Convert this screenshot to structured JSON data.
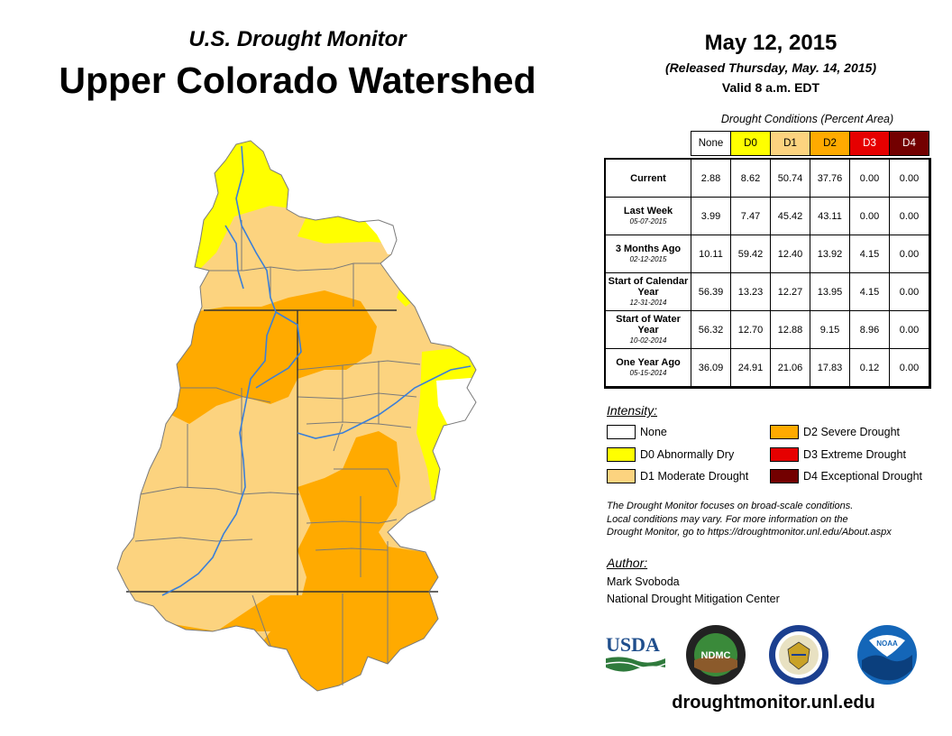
{
  "header": {
    "subtitle": "U.S. Drought Monitor",
    "title": "Upper Colorado Watershed"
  },
  "date_block": {
    "date": "May 12, 2015",
    "released": "(Released Thursday, May. 14, 2015)",
    "valid": "Valid 8 a.m. EDT"
  },
  "conditions": {
    "caption": "Drought Conditions (Percent Area)",
    "columns": [
      {
        "label": "None",
        "color": "#ffffff",
        "text_color": "#000000"
      },
      {
        "label": "D0",
        "color": "#ffff00",
        "text_color": "#000000"
      },
      {
        "label": "D1",
        "color": "#fcd37f",
        "text_color": "#000000"
      },
      {
        "label": "D2",
        "color": "#ffaa00",
        "text_color": "#000000"
      },
      {
        "label": "D3",
        "color": "#e60000",
        "text_color": "#ffffff"
      },
      {
        "label": "D4",
        "color": "#730000",
        "text_color": "#ffffff"
      }
    ],
    "rows": [
      {
        "label": "Current",
        "sub": "",
        "values": [
          "2.88",
          "8.62",
          "50.74",
          "37.76",
          "0.00",
          "0.00"
        ]
      },
      {
        "label": "Last Week",
        "sub": "05-07-2015",
        "values": [
          "3.99",
          "7.47",
          "45.42",
          "43.11",
          "0.00",
          "0.00"
        ]
      },
      {
        "label": "3 Months Ago",
        "sub": "02-12-2015",
        "values": [
          "10.11",
          "59.42",
          "12.40",
          "13.92",
          "4.15",
          "0.00"
        ]
      },
      {
        "label": "Start of Calendar Year",
        "sub": "12-31-2014",
        "values": [
          "56.39",
          "13.23",
          "12.27",
          "13.95",
          "4.15",
          "0.00"
        ]
      },
      {
        "label": "Start of Water Year",
        "sub": "10-02-2014",
        "values": [
          "56.32",
          "12.70",
          "12.88",
          "9.15",
          "8.96",
          "0.00"
        ]
      },
      {
        "label": "One Year Ago",
        "sub": "05-15-2014",
        "values": [
          "36.09",
          "24.91",
          "21.06",
          "17.83",
          "0.12",
          "0.00"
        ]
      }
    ]
  },
  "legend": {
    "title": "Intensity:",
    "items": [
      {
        "label": "None",
        "color": "#ffffff"
      },
      {
        "label": "D0 Abnormally Dry",
        "color": "#ffff00"
      },
      {
        "label": "D1 Moderate Drought",
        "color": "#fcd37f"
      },
      {
        "label": "D2 Severe Drought",
        "color": "#ffaa00"
      },
      {
        "label": "D3 Extreme Drought",
        "color": "#e60000"
      },
      {
        "label": "D4 Exceptional Drought",
        "color": "#730000"
      }
    ]
  },
  "note": {
    "lines": [
      "The Drought Monitor focuses on broad-scale conditions.",
      "Local conditions may vary. For more information on the",
      "Drought Monitor, go to https://droughtmonitor.unl.edu/About.aspx"
    ]
  },
  "author": {
    "title": "Author:",
    "name": "Mark Svoboda",
    "org": "National Drought Mitigation Center"
  },
  "logos": {
    "usda": "USDA",
    "ndmc": "NDMC",
    "noaa": "NOAA"
  },
  "map": {
    "colors": {
      "none": "#ffffff",
      "d0": "#ffff00",
      "d1": "#fcd37f",
      "d2": "#ffaa00",
      "river": "#3b7fd8",
      "boundary": "#7a7a7a",
      "state_line": "#333333"
    }
  },
  "footer": {
    "url": "droughtmonitor.unl.edu"
  }
}
